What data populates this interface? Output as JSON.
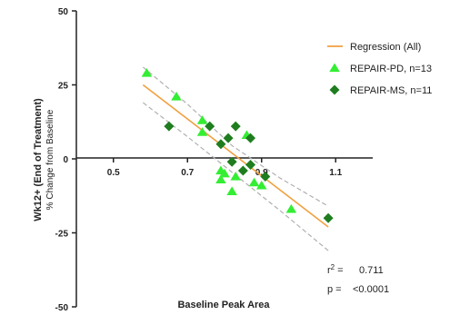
{
  "chart_data": {
    "type": "scatter",
    "xlabel": "Baseline Peak Area",
    "ylabel": "Wk12+ (End of Treatment)",
    "ylabel_sub": "% Change from Baseline",
    "xlim": [
      0.4,
      1.2
    ],
    "ylim": [
      -50,
      50
    ],
    "x_ticks": [
      "0.5",
      "0.7",
      "0.9",
      "1.1"
    ],
    "x_tick_values": [
      0.5,
      0.7,
      0.9,
      1.1
    ],
    "y_ticks": [
      "50",
      "25",
      "0",
      "-25",
      "-50"
    ],
    "y_tick_values": [
      50,
      25,
      0,
      -25,
      -50
    ],
    "legend_position": "top-right",
    "series": [
      {
        "name": "REPAIR-PD, n=13",
        "marker": "triangle",
        "color": "#33ee33",
        "points": [
          {
            "x": 0.59,
            "y": 29
          },
          {
            "x": 0.67,
            "y": 21
          },
          {
            "x": 0.74,
            "y": 13
          },
          {
            "x": 0.74,
            "y": 9
          },
          {
            "x": 0.79,
            "y": -4
          },
          {
            "x": 0.79,
            "y": -7
          },
          {
            "x": 0.8,
            "y": -5
          },
          {
            "x": 0.82,
            "y": -11
          },
          {
            "x": 0.83,
            "y": -6
          },
          {
            "x": 0.86,
            "y": 8
          },
          {
            "x": 0.88,
            "y": -8
          },
          {
            "x": 0.9,
            "y": -9
          },
          {
            "x": 0.98,
            "y": -17
          }
        ]
      },
      {
        "name": "REPAIR-MS, n=11",
        "marker": "diamond",
        "color": "#1e7d1e",
        "points": [
          {
            "x": 0.65,
            "y": 11
          },
          {
            "x": 0.76,
            "y": 11
          },
          {
            "x": 0.79,
            "y": 5
          },
          {
            "x": 0.81,
            "y": 7
          },
          {
            "x": 0.83,
            "y": 11
          },
          {
            "x": 0.82,
            "y": -1
          },
          {
            "x": 0.85,
            "y": -4
          },
          {
            "x": 0.87,
            "y": 7
          },
          {
            "x": 0.87,
            "y": -2
          },
          {
            "x": 0.91,
            "y": -6
          },
          {
            "x": 1.08,
            "y": -20
          }
        ]
      }
    ],
    "regression": {
      "name": "Regression (All)",
      "color": "#f0a040",
      "x": [
        0.58,
        1.08
      ],
      "y": [
        25,
        -23
      ]
    },
    "confidence_band": {
      "color": "#b0b0b0",
      "upper": {
        "x": [
          0.58,
          0.7,
          0.82,
          0.95,
          1.08
        ],
        "y": [
          31,
          18.5,
          4.5,
          -6.5,
          -16
        ]
      },
      "lower": {
        "x": [
          0.58,
          0.7,
          0.82,
          0.95,
          1.08
        ],
        "y": [
          19,
          7.5,
          -4.5,
          -17.5,
          -31
        ]
      }
    },
    "stats": {
      "r2_label": "r",
      "r2_sup": "2",
      "r2_eq": " =",
      "r2_value": "0.711",
      "p_label": "p =",
      "p_value": "<0.0001"
    }
  }
}
